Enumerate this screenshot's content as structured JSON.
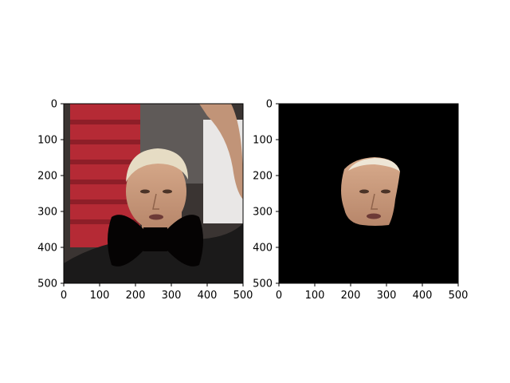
{
  "chart_data": [
    {
      "type": "image",
      "title": "",
      "xlabel": "",
      "ylabel": "",
      "xlim": [
        0,
        500
      ],
      "ylim": [
        500,
        0
      ],
      "xticks": [
        0,
        100,
        200,
        300,
        400,
        500
      ],
      "yticks": [
        0,
        100,
        200,
        300,
        400,
        500
      ],
      "grid": false,
      "content": "photo of a man with bleached hair, face partly covered by a black bow-tie shaped mask",
      "colors": {
        "background": "#2b2624",
        "red_stand": "#b52a35",
        "skin": "#c99a7d",
        "hair": "#e6dcc4",
        "shirt": "#1b1a1a",
        "mask": "#050303"
      }
    },
    {
      "type": "image",
      "title": "",
      "xlabel": "",
      "ylabel": "",
      "xlim": [
        0,
        500
      ],
      "ylim": [
        500,
        0
      ],
      "xticks": [
        0,
        100,
        200,
        300,
        400,
        500
      ],
      "yticks": [
        0,
        100,
        200,
        300,
        400,
        500
      ],
      "grid": false,
      "content": "segmented face region on a black background",
      "colors": {
        "background": "#000000",
        "skin": "#c99a7d",
        "hair": "#eee6d6"
      }
    }
  ]
}
